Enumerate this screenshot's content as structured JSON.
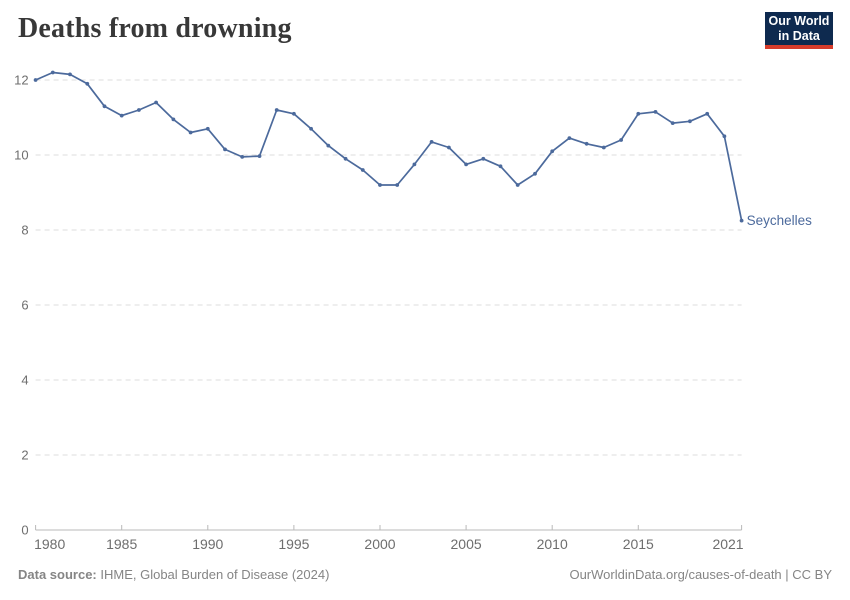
{
  "header": {
    "title": "Deaths from drowning"
  },
  "logo": {
    "line1": "Our World",
    "line2": "in Data"
  },
  "footer": {
    "source_label": "Data source:",
    "source_text": " IHME, Global Burden of Disease (2024)",
    "attribution": "OurWorldinData.org/causes-of-death | CC BY"
  },
  "colors": {
    "line": "#4c6a9c",
    "entity_label": "#4c6a9c",
    "grid": "#dddddd",
    "axis": "#b9b9b9",
    "axis_text": "#6e6e6e",
    "title_text": "#383838",
    "footer_text": "#858585",
    "logo_bg": "#0e2a4f",
    "logo_red": "#d73c2b"
  },
  "chart_data": {
    "type": "line",
    "title": "Deaths from drowning",
    "xlabel": "",
    "ylabel": "",
    "xlim": [
      1980,
      2021
    ],
    "ylim": [
      0,
      12
    ],
    "x_ticks": [
      1980,
      1985,
      1990,
      1995,
      2000,
      2005,
      2010,
      2015,
      2021
    ],
    "y_ticks": [
      0,
      2,
      4,
      6,
      8,
      10,
      12
    ],
    "grid": "horizontal-dashed",
    "legend": "end-of-line-label",
    "series": [
      {
        "name": "Seychelles",
        "x": [
          1980,
          1981,
          1982,
          1983,
          1984,
          1985,
          1986,
          1987,
          1988,
          1989,
          1990,
          1991,
          1992,
          1993,
          1994,
          1995,
          1996,
          1997,
          1998,
          1999,
          2000,
          2001,
          2002,
          2003,
          2004,
          2005,
          2006,
          2007,
          2008,
          2009,
          2010,
          2011,
          2012,
          2013,
          2014,
          2015,
          2016,
          2017,
          2018,
          2019,
          2020,
          2021
        ],
        "values": [
          12.0,
          12.2,
          12.15,
          11.9,
          11.3,
          11.05,
          11.2,
          11.4,
          10.95,
          10.6,
          10.7,
          10.15,
          9.95,
          9.97,
          11.2,
          11.1,
          10.7,
          10.25,
          9.9,
          9.6,
          9.2,
          9.2,
          9.75,
          10.35,
          10.2,
          9.75,
          9.9,
          9.7,
          9.2,
          9.5,
          10.1,
          10.45,
          10.3,
          10.2,
          10.4,
          11.1,
          11.15,
          10.85,
          10.9,
          11.1,
          10.5,
          8.25
        ]
      }
    ]
  }
}
